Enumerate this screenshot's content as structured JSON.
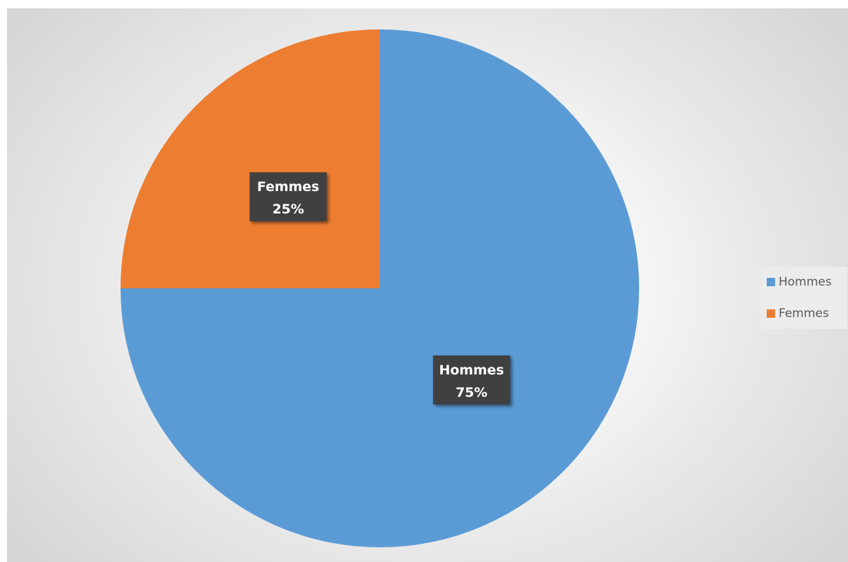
{
  "chart_data": {
    "type": "pie",
    "title": "",
    "categories": [
      "Hommes",
      "Femmes"
    ],
    "values": [
      75,
      25
    ],
    "unit": "%",
    "slices": [
      {
        "label": "Hommes",
        "value": 75,
        "display": "75%",
        "color": "#5b9bd5"
      },
      {
        "label": "Femmes",
        "value": 25,
        "display": "25%",
        "color": "#ed7d31"
      }
    ],
    "legend": {
      "position": "right",
      "entries": [
        {
          "label": "Hommes",
          "color": "#5b9bd5"
        },
        {
          "label": "Femmes",
          "color": "#ed7d31"
        }
      ]
    },
    "data_labels": {
      "show_category": true,
      "show_percent": true,
      "box_color": "#404040",
      "text_color": "#ffffff"
    },
    "background_color": "#f2f2f2"
  }
}
